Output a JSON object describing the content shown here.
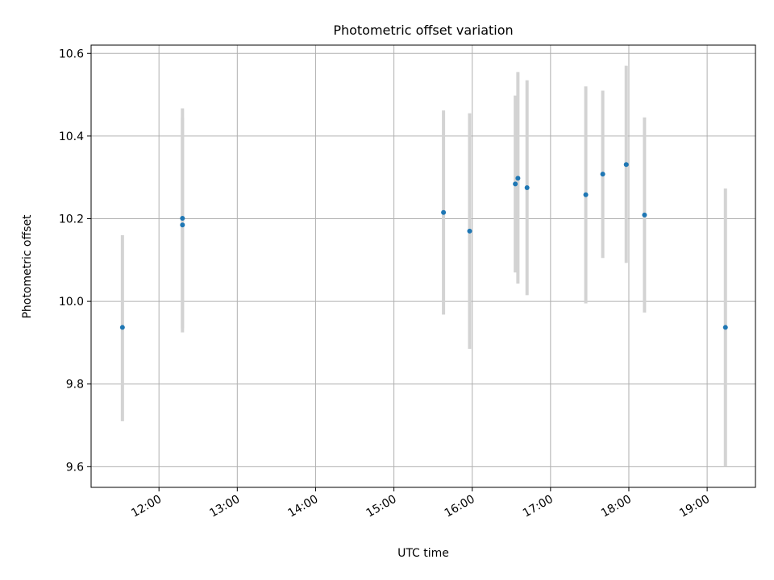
{
  "chart_data": {
    "type": "scatter",
    "title": "Photometric offset variation",
    "xlabel": "UTC time",
    "ylabel": "Photometric offset",
    "xlim": [
      "11:08",
      "19:37"
    ],
    "ylim": [
      9.55,
      10.62
    ],
    "grid": true,
    "x_ticks": [
      "12:00",
      "13:00",
      "14:00",
      "15:00",
      "16:00",
      "17:00",
      "18:00",
      "19:00"
    ],
    "y_ticks": [
      "9.6",
      "9.8",
      "10.0",
      "10.2",
      "10.4",
      "10.6"
    ],
    "points": [
      {
        "x": "11:32",
        "y": 9.937,
        "ylow": 9.71,
        "yhigh": 10.16
      },
      {
        "x": "12:18",
        "y": 10.185,
        "ylow": 9.925,
        "yhigh": 10.445
      },
      {
        "x": "12:18",
        "y": 10.201,
        "ylow": 9.935,
        "yhigh": 10.467
      },
      {
        "x": "15:38",
        "y": 10.215,
        "ylow": 9.968,
        "yhigh": 10.462
      },
      {
        "x": "15:58",
        "y": 10.17,
        "ylow": 9.885,
        "yhigh": 10.455
      },
      {
        "x": "16:33",
        "y": 10.284,
        "ylow": 10.07,
        "yhigh": 10.498
      },
      {
        "x": "16:35",
        "y": 10.298,
        "ylow": 10.043,
        "yhigh": 10.555
      },
      {
        "x": "16:42",
        "y": 10.275,
        "ylow": 10.015,
        "yhigh": 10.535
      },
      {
        "x": "17:27",
        "y": 10.258,
        "ylow": 9.995,
        "yhigh": 10.52
      },
      {
        "x": "17:40",
        "y": 10.308,
        "ylow": 10.105,
        "yhigh": 10.51
      },
      {
        "x": "17:58",
        "y": 10.331,
        "ylow": 10.093,
        "yhigh": 10.57
      },
      {
        "x": "18:12",
        "y": 10.209,
        "ylow": 9.973,
        "yhigh": 10.445
      },
      {
        "x": "19:14",
        "y": 9.937,
        "ylow": 9.6,
        "yhigh": 10.273
      }
    ],
    "colors": {
      "marker": "#1f77b4",
      "errorbar": "#d3d3d3",
      "grid": "#b0b0b0"
    }
  }
}
